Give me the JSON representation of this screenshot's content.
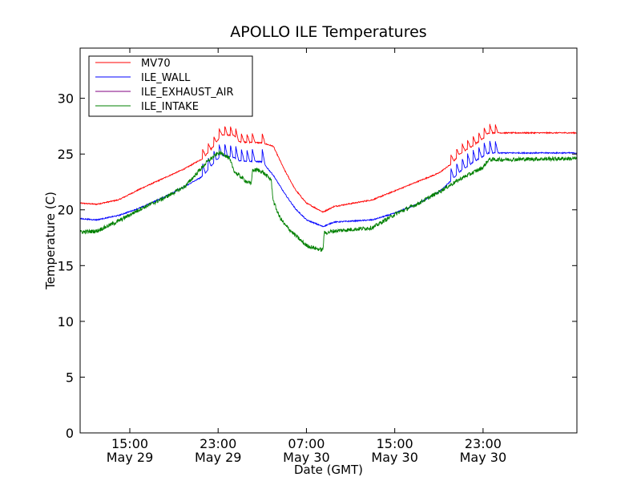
{
  "chart_data": {
    "type": "line",
    "title": "APOLLO ILE Temperatures",
    "xlabel": "Date (GMT)",
    "ylabel": "Temperature (C)",
    "ylim": [
      0,
      34.5
    ],
    "xlim_hours": [
      10.5,
      55.5
    ],
    "x_unit": "hours since 2013-05-29 00:00 GMT",
    "y_ticks": [
      0,
      5,
      10,
      15,
      20,
      25,
      30
    ],
    "x_ticks": [
      {
        "hour": 15,
        "time": "15:00",
        "date": "May 29"
      },
      {
        "hour": 23,
        "time": "23:00",
        "date": "May 29"
      },
      {
        "hour": 31,
        "time": "07:00",
        "date": "May 30"
      },
      {
        "hour": 39,
        "time": "15:00",
        "date": "May 30"
      },
      {
        "hour": 47,
        "time": "23:00",
        "date": "May 30"
      }
    ],
    "legend": {
      "location": "top-left"
    },
    "series": [
      {
        "name": "MV70",
        "color": "#ff0000",
        "noise": 0.05,
        "x": [
          10.5,
          12,
          14,
          16,
          18,
          20,
          21.6,
          22.5,
          23.3,
          24.4,
          24.9,
          27,
          28,
          29,
          30,
          31,
          32.5,
          33.5,
          37,
          39,
          41,
          43,
          44.1,
          45,
          46,
          47,
          47.5,
          55.5
        ],
        "y": [
          20.6,
          20.5,
          20.9,
          21.9,
          22.8,
          23.7,
          24.6,
          25.6,
          26.7,
          26.7,
          26.1,
          26.0,
          25.7,
          23.6,
          21.8,
          20.6,
          19.8,
          20.3,
          20.9,
          21.7,
          22.5,
          23.3,
          24.1,
          25.1,
          25.7,
          26.4,
          26.9,
          26.9
        ],
        "spikes": [
          21.6,
          22.1,
          22.6,
          23.1,
          23.6,
          24.1,
          24.6,
          25.1,
          25.6,
          26.1,
          27.0,
          44.1,
          44.6,
          45.1,
          45.6,
          46.1,
          46.6,
          47.1,
          47.6,
          48.1
        ],
        "spike_height": 0.8
      },
      {
        "name": "ILE_WALL",
        "color": "#0000ff",
        "noise": 0.05,
        "x": [
          10.5,
          12,
          14,
          16,
          18,
          20,
          21.6,
          22.5,
          23.3,
          24.4,
          24.9,
          27,
          28,
          29,
          30,
          31,
          32.5,
          33.5,
          37,
          39,
          41,
          43,
          44.1,
          45,
          46,
          47,
          47.5,
          55.5
        ],
        "y": [
          19.2,
          19.1,
          19.5,
          20.2,
          21.1,
          22.1,
          23.0,
          24.1,
          24.9,
          24.7,
          24.4,
          24.3,
          23.1,
          21.5,
          20.1,
          19.1,
          18.5,
          18.9,
          19.1,
          19.7,
          20.5,
          21.6,
          22.6,
          23.5,
          24.2,
          24.8,
          25.1,
          25.1
        ],
        "spikes": [
          21.6,
          22.1,
          22.6,
          23.1,
          23.6,
          24.1,
          24.6,
          25.1,
          25.6,
          26.1,
          27.0,
          44.1,
          44.6,
          45.1,
          45.6,
          46.1,
          46.6,
          47.1,
          47.6,
          48.1
        ],
        "spike_height": 1.1
      },
      {
        "name": "ILE_EXHAUST_AIR",
        "color": "#800080",
        "noise": 0.0,
        "x": [],
        "y": [],
        "spikes": [],
        "spike_height": 0
      },
      {
        "name": "ILE_INTAKE",
        "color": "#008000",
        "noise": 0.18,
        "x": [
          10.5,
          12,
          14,
          16,
          18,
          20,
          22,
          23,
          23.5,
          24.0,
          24.5,
          25.5,
          26.0,
          26.1,
          26.5,
          27,
          27.8,
          28.0,
          28.5,
          29,
          30,
          31,
          32,
          32.5,
          32.6,
          33.5,
          37,
          39,
          41,
          43,
          45,
          47,
          47.5,
          55.5
        ],
        "y": [
          18.0,
          18.1,
          19.0,
          20.1,
          21.0,
          22.1,
          24.3,
          25.1,
          25.0,
          24.6,
          23.4,
          22.6,
          22.3,
          23.5,
          23.6,
          23.4,
          22.7,
          20.8,
          19.5,
          18.7,
          17.7,
          16.8,
          16.5,
          16.4,
          17.9,
          18.1,
          18.4,
          19.6,
          20.5,
          21.6,
          22.8,
          23.8,
          24.5,
          24.6
        ],
        "spikes": [],
        "spike_height": 0
      }
    ]
  }
}
